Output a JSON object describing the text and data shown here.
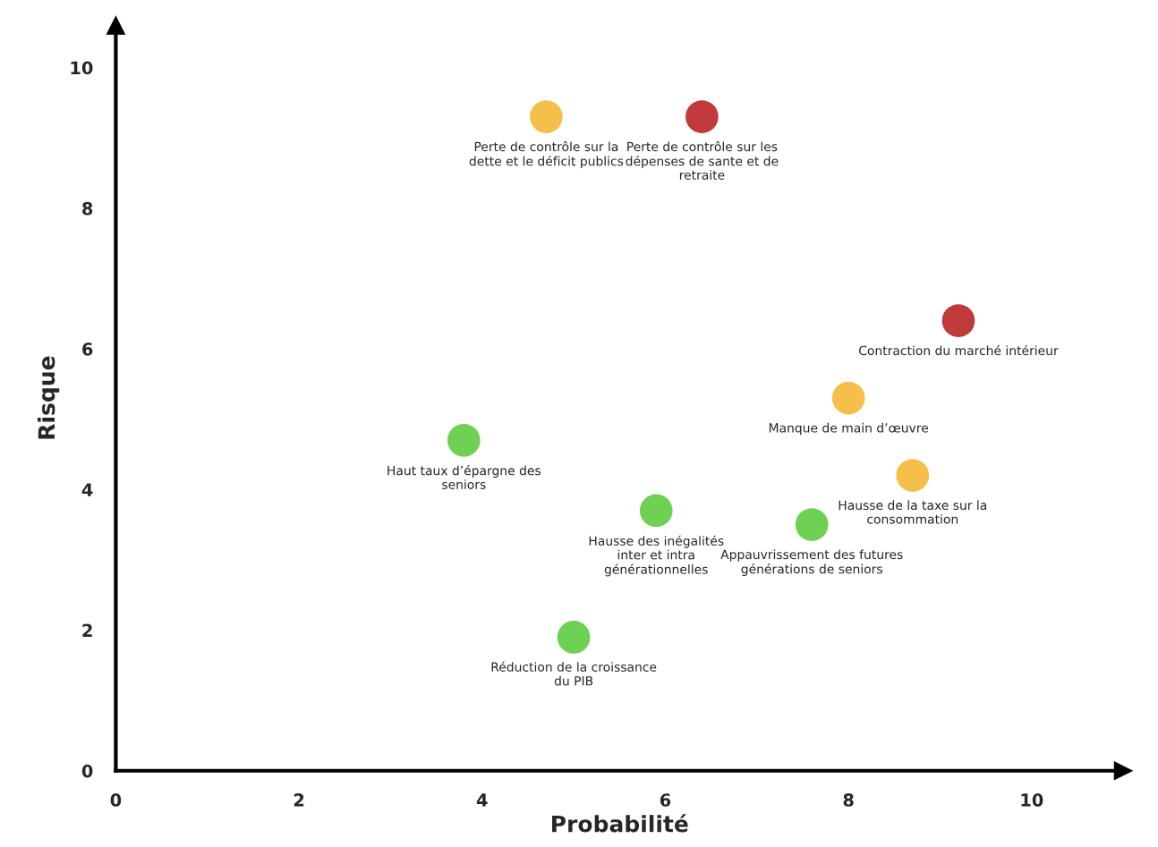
{
  "chart_data": {
    "type": "scatter",
    "xlabel": "Probabilité",
    "ylabel": "Risque",
    "x": [
      4.7,
      6.4,
      9.2,
      8.0,
      8.7,
      3.8,
      5.9,
      7.6,
      5.0
    ],
    "values": [
      9.3,
      9.3,
      6.4,
      5.3,
      4.2,
      4.7,
      3.7,
      3.5,
      1.9
    ],
    "colors": [
      "#f5c04a",
      "#c0393b",
      "#c0393b",
      "#f5c04a",
      "#f5c04a",
      "#6fd154",
      "#6fd154",
      "#6fd154",
      "#6fd154"
    ],
    "annotations": [
      {
        "text": "Perte de contrôle sur la\ndette et le déficit publics",
        "x": 4.7,
        "y": 9.3
      },
      {
        "text": "Perte de contrôle sur les\ndépenses de sante et de\nretraite",
        "x": 6.4,
        "y": 9.3
      },
      {
        "text": "Contraction du marché intérieur",
        "x": 9.2,
        "y": 6.4
      },
      {
        "text": "Manque de main d’œuvre",
        "x": 8.0,
        "y": 5.3
      },
      {
        "text": "Hausse de la taxe sur la\nconsommation",
        "x": 8.7,
        "y": 4.2
      },
      {
        "text": "Haut taux d’épargne des\nseniors",
        "x": 3.8,
        "y": 4.7
      },
      {
        "text": "Hausse des inégalités\ninter et intra\ngénérationnelles",
        "x": 5.9,
        "y": 3.7
      },
      {
        "text": "Appauvrissement des futures\ngénérations de seniors",
        "x": 7.6,
        "y": 3.5
      },
      {
        "text": "Réduction de la croissance\ndu PIB",
        "x": 5.0,
        "y": 1.9
      }
    ],
    "xlim": [
      0,
      11
    ],
    "ylim": [
      0,
      10.6
    ],
    "xticks": [
      0,
      2,
      4,
      6,
      8,
      10
    ],
    "yticks": [
      0,
      2,
      4,
      6,
      8,
      10
    ],
    "grid": false,
    "marker": "circle"
  }
}
